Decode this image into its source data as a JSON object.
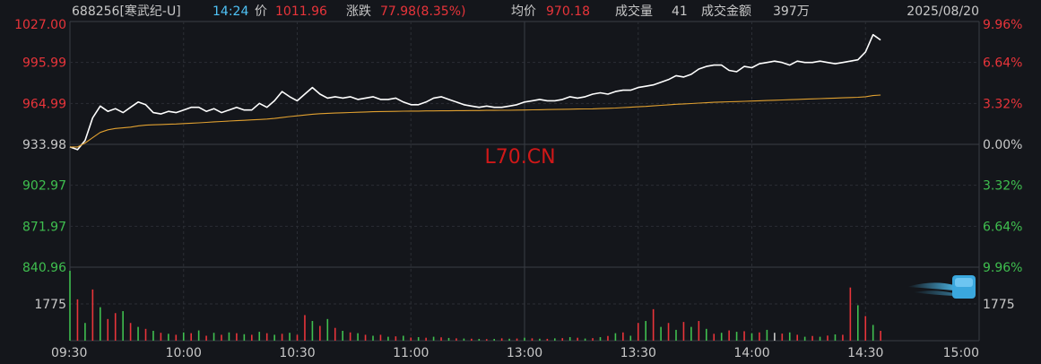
{
  "header": {
    "code": "688256[寒武纪-U]",
    "time": "14:24",
    "price_label": "价",
    "price": "1011.96",
    "change_label": "涨跌",
    "change": "77.98(8.35%)",
    "avg_label": "均价",
    "avg": "970.18",
    "vol_label": "成交量",
    "vol": "41",
    "amt_label": "成交金额",
    "amt": "397万",
    "date": "2025/08/20"
  },
  "watermark": "L70.CN",
  "colors": {
    "up": "#e8343a",
    "down": "#3fbf4f",
    "flat": "#c8c8c8",
    "price_line": "#ffffff",
    "avg_line": "#e0a030",
    "grid": "#2b2e35",
    "accent": "#4fc3f7"
  },
  "chart_data": {
    "type": "line",
    "title": "",
    "prev_close": 933.98,
    "price_axis_left": [
      "1027.00",
      "995.99",
      "964.99",
      "933.98",
      "902.97",
      "871.97",
      "840.96"
    ],
    "price_axis_right": [
      "9.96%",
      "6.64%",
      "3.32%",
      "0.00%",
      "3.32%",
      "6.64%",
      "9.96%"
    ],
    "ylim": [
      840.96,
      1027.0
    ],
    "volume_axis_label": "1775",
    "volume_ylim": [
      0,
      3550
    ],
    "x_ticks": [
      "09:30",
      "10:00",
      "10:30",
      "11:00",
      "13:00",
      "13:30",
      "14:00",
      "14:30",
      "15:00"
    ],
    "session_minutes": 240,
    "x": [
      0,
      2,
      4,
      6,
      8,
      10,
      12,
      14,
      16,
      18,
      20,
      22,
      24,
      26,
      28,
      30,
      32,
      34,
      36,
      38,
      40,
      42,
      44,
      46,
      48,
      50,
      52,
      54,
      56,
      58,
      60,
      62,
      64,
      66,
      68,
      70,
      72,
      74,
      76,
      78,
      80,
      82,
      84,
      86,
      88,
      90,
      92,
      94,
      96,
      98,
      100,
      102,
      104,
      106,
      108,
      110,
      112,
      114,
      116,
      118,
      120,
      122,
      124,
      126,
      128,
      130,
      132,
      134,
      136,
      138,
      140,
      142,
      144,
      146,
      148,
      150,
      152,
      154,
      156,
      158,
      160,
      162,
      164,
      166,
      168,
      170,
      172,
      174,
      176,
      178,
      180,
      182,
      184,
      186,
      188,
      190,
      192,
      194,
      196,
      198,
      200,
      202,
      204,
      206,
      208,
      210,
      212,
      214
    ],
    "series": [
      {
        "role": "price",
        "values": [
          932.0,
          930.0,
          937.0,
          954.0,
          963.0,
          959.0,
          961.0,
          958.0,
          962.0,
          966.0,
          964.0,
          958.0,
          957.0,
          959.0,
          958.0,
          960.0,
          962.0,
          962.0,
          959.0,
          961.0,
          958.0,
          960.0,
          962.0,
          960.0,
          960.0,
          965.0,
          962.0,
          967.0,
          974.0,
          970.0,
          967.0,
          972.0,
          977.0,
          972.0,
          969.0,
          970.0,
          969.0,
          970.0,
          968.0,
          969.0,
          970.0,
          968.0,
          968.0,
          969.0,
          966.0,
          964.0,
          964.0,
          966.0,
          969.0,
          970.0,
          968.0,
          966.0,
          964.0,
          963.0,
          962.0,
          963.0,
          962.0,
          962.0,
          963.0,
          964.0,
          966.0,
          967.0,
          968.0,
          967.0,
          967.0,
          968.0,
          970.0,
          969.0,
          970.0,
          972.0,
          973.0,
          972.0,
          974.0,
          975.0,
          975.0,
          977.0,
          978.0,
          979.0,
          981.0,
          983.0,
          986.0,
          985.0,
          987.0,
          991.0,
          993.0,
          994.0,
          994.0,
          990.0,
          989.0,
          993.0,
          992.0,
          995.0,
          996.0,
          997.0,
          996.0,
          994.0,
          997.0,
          996.0,
          996.0,
          997.0,
          996.0,
          995.0,
          996.0,
          997.0,
          998.0,
          1004.0,
          1017.0,
          1013.0
        ]
      },
      {
        "role": "average",
        "values": [
          932.0,
          932.0,
          935.0,
          939.0,
          943.0,
          945.0,
          946.0,
          946.5,
          947.0,
          948.0,
          948.5,
          948.8,
          949.0,
          949.2,
          949.4,
          949.7,
          950.0,
          950.3,
          950.6,
          951.0,
          951.3,
          951.6,
          951.9,
          952.2,
          952.5,
          952.8,
          953.1,
          953.6,
          954.3,
          955.0,
          955.6,
          956.2,
          956.8,
          957.2,
          957.5,
          957.7,
          957.9,
          958.1,
          958.3,
          958.5,
          958.7,
          958.8,
          958.9,
          959.0,
          959.1,
          959.2,
          959.2,
          959.3,
          959.3,
          959.4,
          959.4,
          959.5,
          959.5,
          959.6,
          959.6,
          959.7,
          959.7,
          959.8,
          959.8,
          959.9,
          960.0,
          960.1,
          960.2,
          960.3,
          960.4,
          960.5,
          960.6,
          960.7,
          960.8,
          960.9,
          961.1,
          961.3,
          961.5,
          961.8,
          962.1,
          962.4,
          962.7,
          963.1,
          963.5,
          963.9,
          964.3,
          964.6,
          964.9,
          965.2,
          965.5,
          965.8,
          966.0,
          966.2,
          966.4,
          966.6,
          966.8,
          967.0,
          967.2,
          967.4,
          967.6,
          967.8,
          968.0,
          968.2,
          968.4,
          968.6,
          968.8,
          969.0,
          969.2,
          969.4,
          969.6,
          970.0,
          970.9,
          971.3
        ]
      }
    ],
    "volume": [
      3550,
      2100,
      900,
      2600,
      1700,
      1100,
      1400,
      1500,
      900,
      700,
      600,
      500,
      400,
      350,
      300,
      420,
      380,
      520,
      250,
      400,
      300,
      420,
      380,
      330,
      300,
      450,
      380,
      300,
      350,
      400,
      300,
      1300,
      1000,
      750,
      1100,
      650,
      500,
      420,
      380,
      300,
      250,
      300,
      200,
      220,
      250,
      160,
      180,
      150,
      200,
      170,
      140,
      120,
      110,
      100,
      90,
      80,
      90,
      120,
      100,
      110,
      150,
      120,
      100,
      95,
      120,
      130,
      180,
      150,
      110,
      130,
      180,
      240,
      380,
      420,
      250,
      900,
      1000,
      1600,
      700,
      900,
      550,
      950,
      700,
      1000,
      600,
      350,
      400,
      520,
      450,
      480,
      380,
      420,
      550,
      400,
      360,
      420,
      300,
      200,
      240,
      200,
      260,
      320,
      300,
      2700,
      1800,
      1250,
      800,
      500
    ],
    "volume_dir": [
      "d",
      "u",
      "d",
      "u",
      "d",
      "u",
      "u",
      "d",
      "u",
      "d",
      "u",
      "d",
      "u",
      "d",
      "u",
      "d",
      "u",
      "d",
      "u",
      "d",
      "u",
      "d",
      "u",
      "d",
      "u",
      "d",
      "u",
      "d",
      "u",
      "d",
      "u",
      "u",
      "d",
      "u",
      "d",
      "u",
      "d",
      "u",
      "d",
      "u",
      "d",
      "u",
      "d",
      "u",
      "d",
      "u",
      "d",
      "u",
      "d",
      "u",
      "d",
      "u",
      "d",
      "u",
      "d",
      "u",
      "d",
      "u",
      "d",
      "u",
      "d",
      "u",
      "d",
      "u",
      "d",
      "u",
      "d",
      "u",
      "d",
      "u",
      "d",
      "u",
      "d",
      "u",
      "d",
      "u",
      "d",
      "u",
      "d",
      "u",
      "d",
      "u",
      "d",
      "u",
      "d",
      "u",
      "d",
      "u",
      "d",
      "u",
      "d",
      "u",
      "d",
      "f",
      "u",
      "d",
      "u",
      "d",
      "u",
      "d",
      "u",
      "d",
      "u",
      "u",
      "d",
      "u",
      "d",
      "u"
    ]
  }
}
